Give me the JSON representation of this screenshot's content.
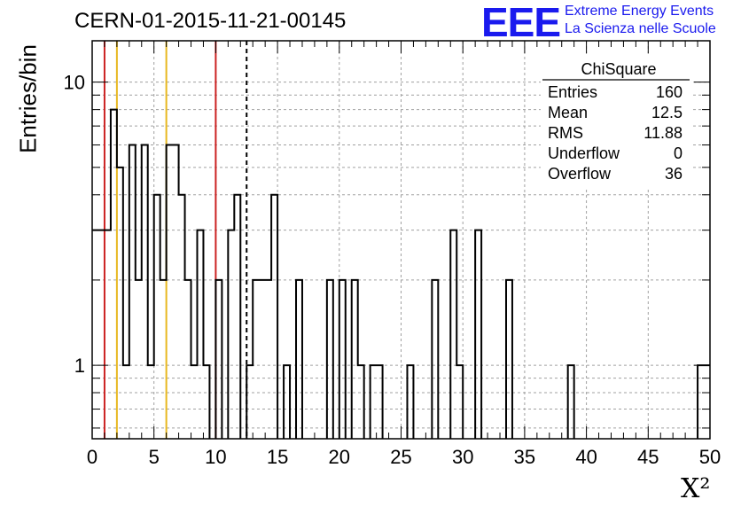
{
  "header": {
    "title": "CERN-01-2015-11-21-00145",
    "logo_text": "EEE",
    "logo_line1": "Extreme Energy Events",
    "logo_line2": "La Scienza nelle Scuole"
  },
  "stats": {
    "name": "ChiSquare",
    "rows": [
      {
        "label": "Entries",
        "value": "160"
      },
      {
        "label": "Mean",
        "value": "12.5"
      },
      {
        "label": "RMS",
        "value": "11.88"
      },
      {
        "label": "Underflow",
        "value": "0"
      },
      {
        "label": "Overflow",
        "value": "36"
      }
    ]
  },
  "chart_data": {
    "type": "histogram",
    "ylabel": "Entries/bin",
    "xlabel": "X²",
    "xlim": [
      0,
      50
    ],
    "ylim": [
      0.55,
      14
    ],
    "y_scale": "log",
    "grid": true,
    "bin_width": 0.5,
    "xticks": [
      0,
      5,
      10,
      15,
      20,
      25,
      30,
      35,
      40,
      45,
      50
    ],
    "yticks": [
      1,
      10
    ],
    "counts": [
      3,
      3,
      3,
      8,
      5,
      1,
      6,
      2,
      6,
      1,
      4,
      2,
      6,
      6,
      4,
      2,
      1,
      3,
      1,
      0,
      2,
      0,
      3,
      4,
      0,
      1,
      2,
      2,
      2,
      4,
      0,
      1,
      0,
      2,
      0,
      0,
      0,
      0,
      2,
      0,
      2,
      0,
      2,
      1,
      0,
      1,
      1,
      0,
      0,
      0,
      0,
      1,
      0,
      0,
      0,
      2,
      0,
      0,
      3,
      1,
      0,
      0,
      3,
      0,
      0,
      0,
      0,
      2,
      0,
      0,
      0,
      0,
      0,
      0,
      0,
      0,
      0,
      1,
      0,
      0,
      0,
      0,
      0,
      0,
      0,
      0,
      0,
      0,
      0,
      0,
      0,
      0,
      0,
      0,
      0,
      0,
      0,
      0,
      1,
      1
    ],
    "vertical_lines": [
      {
        "x": 1,
        "color": "#cc2222",
        "style": "solid"
      },
      {
        "x": 2,
        "color": "#e8b820",
        "style": "solid"
      },
      {
        "x": 6,
        "color": "#e8b820",
        "style": "solid"
      },
      {
        "x": 10,
        "color": "#cc2222",
        "style": "solid"
      },
      {
        "x": 12.5,
        "color": "#000000",
        "style": "dashed"
      }
    ]
  }
}
